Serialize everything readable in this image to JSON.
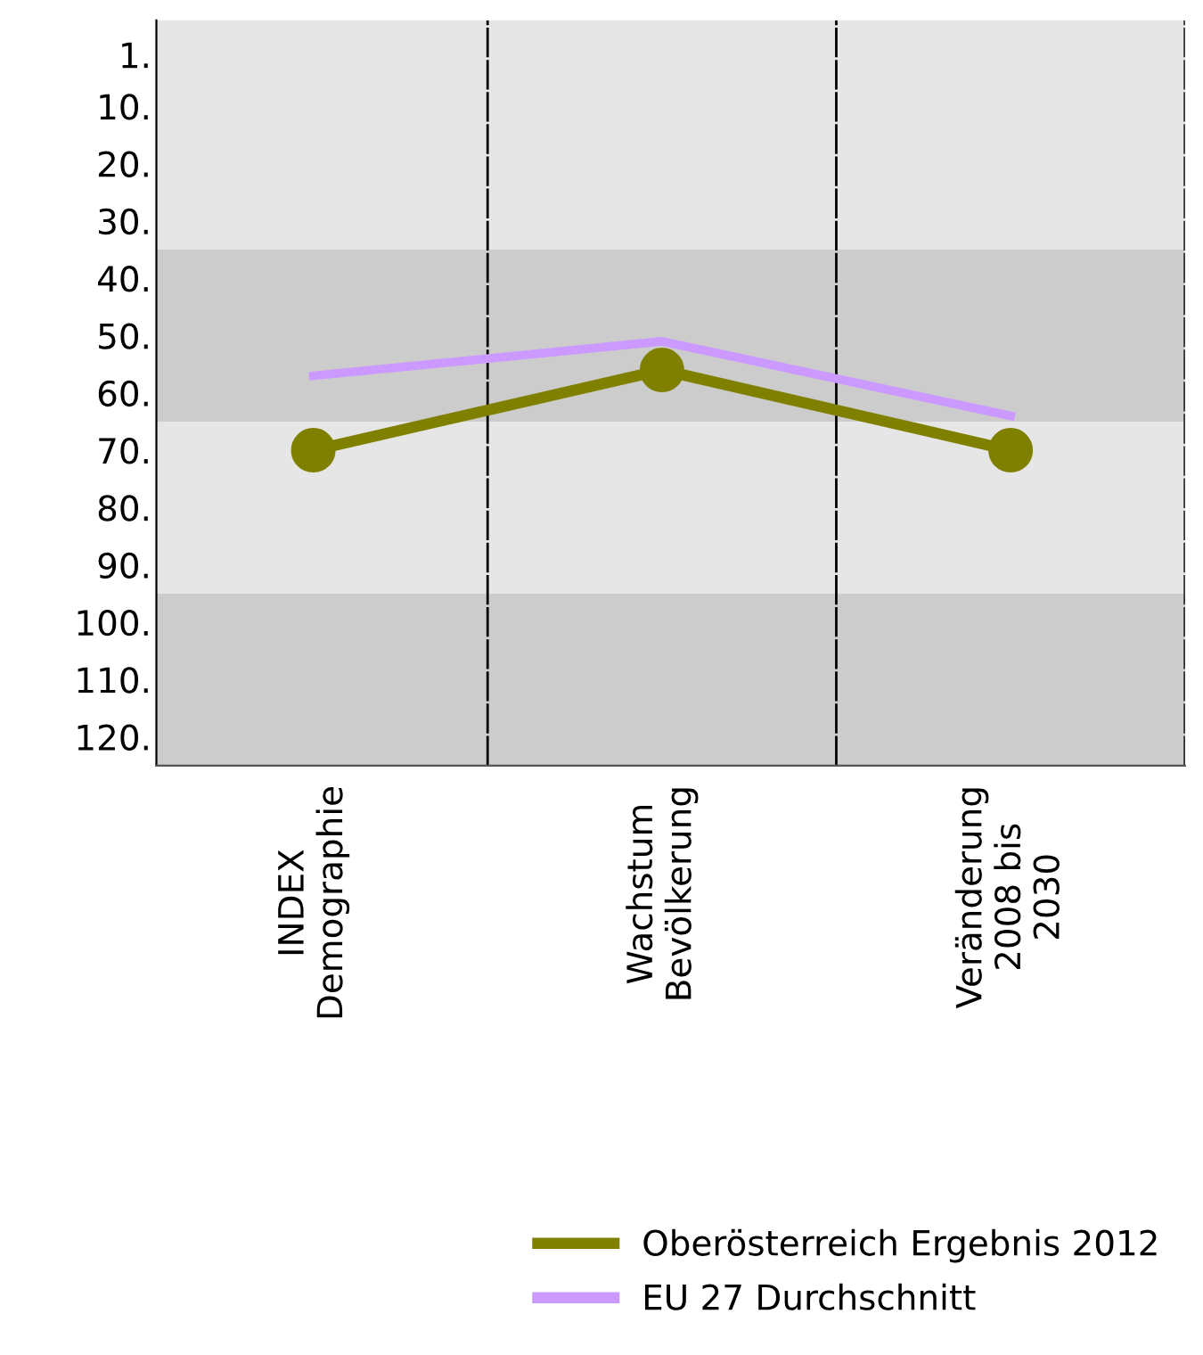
{
  "chart_data": {
    "type": "line",
    "categories": [
      "INDEX\nDemographie",
      "Wachstum\nBevölkerung",
      "Veränderung\n2008 bis\n2030"
    ],
    "series": [
      {
        "name": "Oberösterreich Ergebnis 2012",
        "color": "#808000",
        "values": [
          70,
          56,
          70
        ],
        "marker": "circle"
      },
      {
        "name": "EU 27 Durchschnitt",
        "color": "#cc99ff",
        "values": [
          57,
          51,
          64
        ],
        "marker": "none"
      }
    ],
    "ylim": [
      125,
      -5
    ],
    "yticks": [
      {
        "value": 1,
        "label": "1."
      },
      {
        "value": 10,
        "label": "10."
      },
      {
        "value": 20,
        "label": "20."
      },
      {
        "value": 30,
        "label": "30."
      },
      {
        "value": 40,
        "label": "40."
      },
      {
        "value": 50,
        "label": "50."
      },
      {
        "value": 60,
        "label": "60."
      },
      {
        "value": 70,
        "label": "70."
      },
      {
        "value": 80,
        "label": "80."
      },
      {
        "value": 90,
        "label": "90."
      },
      {
        "value": 100,
        "label": "100."
      },
      {
        "value": 110,
        "label": "110."
      },
      {
        "value": 120,
        "label": "120."
      }
    ],
    "bands": [
      {
        "axis": "y",
        "from": 35,
        "to": 65,
        "color": "#cccccc"
      },
      {
        "axis": "y",
        "from": 95,
        "to": 125,
        "color": "#cccccc"
      }
    ],
    "grid": false,
    "legend": "bottom right",
    "line_style": "solid"
  }
}
